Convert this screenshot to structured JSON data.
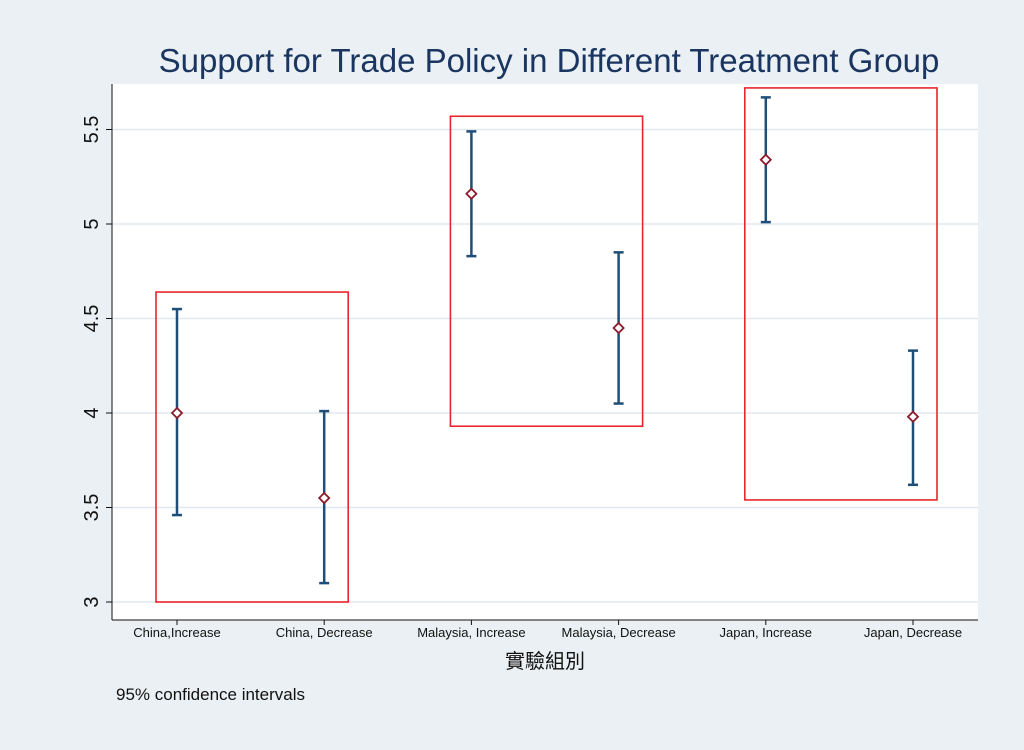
{
  "chart_data": {
    "type": "scatter",
    "title": "Support for Trade Policy in Different Treatment Group",
    "xlabel": "實驗組別",
    "ylabel": "",
    "note": "95% confidence intervals",
    "categories": [
      "China,Increase",
      "China, Decrease",
      "Malaysia, Increase",
      "Malaysia, Decrease",
      "Japan, Increase",
      "Japan, Decrease"
    ],
    "series": [
      {
        "values": [
          4.0,
          3.55,
          5.16,
          4.45,
          5.34,
          3.98
        ],
        "ci_low": [
          3.46,
          3.1,
          4.83,
          4.05,
          5.01,
          3.62
        ],
        "ci_high": [
          4.55,
          4.01,
          5.49,
          4.85,
          5.67,
          4.33
        ]
      }
    ],
    "ylim": [
      3,
      5.7
    ],
    "yticks": [
      "3",
      "3.5",
      "4",
      "4.5",
      "5",
      "5.5"
    ],
    "ytick_values": [
      3,
      3.5,
      4,
      4.5,
      5,
      5.5
    ],
    "grid": true,
    "highlight_boxes": [
      {
        "from": "China,Increase",
        "to": "China, Decrease",
        "y_low": 3.0,
        "y_high": 4.64
      },
      {
        "from": "Malaysia, Increase",
        "to": "Malaysia, Decrease",
        "y_low": 3.93,
        "y_high": 5.57
      },
      {
        "from": "Japan, Increase",
        "to": "Japan, Decrease",
        "y_low": 3.54,
        "y_high": 5.72
      }
    ],
    "colors": {
      "background": "#eaf0f3",
      "plot_bg": "#ffffff",
      "grid": "#e1e9ee",
      "error_bar": "#1f4e79",
      "marker": "#8b1a2b",
      "box": "#e8262d",
      "title": "#1a3560"
    }
  }
}
